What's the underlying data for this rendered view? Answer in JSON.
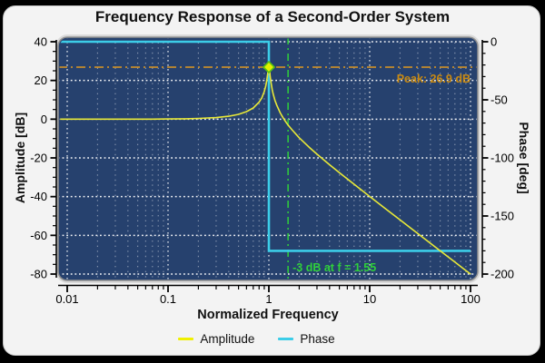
{
  "colors": {
    "frame": "#000000",
    "figure_bg": "#f3f3f3"
  },
  "chart_data": {
    "type": "line",
    "title": "Frequency Response of a Second-Order System",
    "xlabel": "Normalized Frequency",
    "x_scale": "log",
    "xlim": [
      0.01,
      100
    ],
    "x_major_ticks": {
      "values": [
        0.01,
        0.1,
        1,
        10,
        100
      ],
      "labels": [
        "0.01",
        "0.1",
        "1",
        "10",
        "100"
      ]
    },
    "axes": {
      "left": {
        "label": "Amplitude [dB]",
        "lim": [
          -80,
          40
        ],
        "major_ticks": [
          40,
          20,
          0,
          -20,
          -40,
          -60,
          -80
        ],
        "minor_step": 5
      },
      "right": {
        "label": "Phase [deg]",
        "lim": [
          -200,
          0
        ],
        "major_ticks": [
          0,
          -50,
          -100,
          -150,
          -200
        ],
        "minor_step": 10
      }
    },
    "panel_bg": "#26416e",
    "grid": {
      "style": "dotted",
      "h_color": "rgba(255,255,255,0.95)",
      "v_major_color": "rgba(255,255,255,0.85)",
      "v_minor_color": "rgba(255,255,255,0.42)"
    },
    "series": [
      {
        "name": "Amplitude",
        "axis": "left",
        "color": "#e8e838",
        "x": [
          0.0085,
          0.01,
          0.02,
          0.03,
          0.05,
          0.07,
          0.1,
          0.15,
          0.2,
          0.3,
          0.4,
          0.5,
          0.6,
          0.7,
          0.8,
          0.85,
          0.9,
          0.93,
          0.95,
          0.97,
          0.98,
          0.99,
          1.0,
          1.01,
          1.02,
          1.03,
          1.05,
          1.08,
          1.1,
          1.15,
          1.2,
          1.3,
          1.4,
          1.5,
          1.55,
          1.7,
          2.0,
          2.5,
          3.0,
          4.0,
          5.0,
          7.0,
          10.0,
          15.0,
          20.0,
          30.0,
          50.0,
          70.0,
          100.0
        ],
        "y": [
          0.0,
          0.0,
          0.0,
          0.0,
          0.0,
          0.0,
          0.1,
          0.2,
          0.4,
          0.8,
          1.5,
          2.5,
          3.9,
          5.8,
          8.8,
          11.0,
          14.2,
          17.0,
          19.5,
          22.7,
          24.5,
          26.2,
          26.9,
          26.0,
          24.2,
          22.3,
          18.9,
          15.2,
          13.3,
          9.7,
          7.1,
          3.2,
          0.3,
          -2.0,
          -3.0,
          -5.5,
          -9.6,
          -14.4,
          -18.1,
          -23.5,
          -27.6,
          -33.6,
          -39.9,
          -47.0,
          -52.0,
          -59.1,
          -68.0,
          -73.8,
          -80.0
        ]
      },
      {
        "name": "Phase",
        "axis": "right",
        "color": "#3ccde8",
        "x": [
          0.0085,
          1.0,
          1.0,
          100.0
        ],
        "y": [
          0,
          0,
          -180,
          -180
        ]
      }
    ],
    "annotations": {
      "peak": {
        "text": "Peak: 26.9 dB",
        "color": "#c98a12",
        "line_color": "#dd9820",
        "db": 26.9,
        "f": 1.0,
        "marker_fill": "#e4f000",
        "marker_edge": "#59c313"
      },
      "cutoff": {
        "text": "-3 dB at f = 1.55",
        "color": "#2fd03a",
        "db": -3,
        "f": 1.55
      }
    },
    "legend": {
      "position": "bottom",
      "items": [
        {
          "label": "Amplitude",
          "color": "#f0f000"
        },
        {
          "label": "Phase",
          "color": "#3ccde8"
        }
      ]
    }
  }
}
